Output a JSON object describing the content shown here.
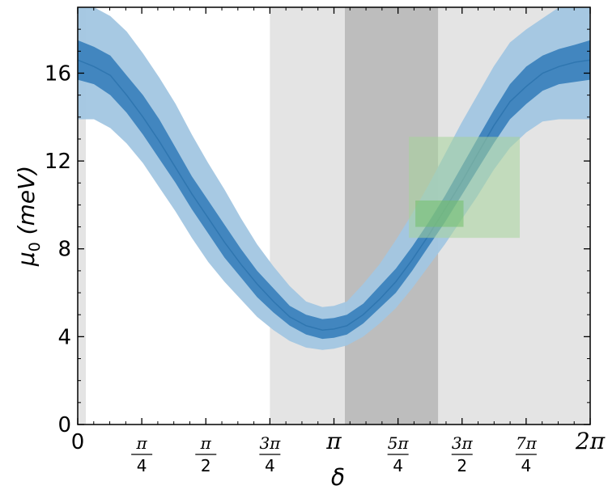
{
  "chart_data": {
    "type": "area",
    "xlabel": "δ",
    "ylabel_main": "μ",
    "ylabel_sub": "0",
    "ylabel_unit": "(meV)",
    "xlim": [
      0,
      6.2832
    ],
    "ylim": [
      0,
      19
    ],
    "y_ticks": [
      0,
      4,
      8,
      12,
      16
    ],
    "y_tick_labels": [
      "0",
      "4",
      "8",
      "12",
      "16"
    ],
    "x_ticks": [
      0,
      0.7854,
      1.5708,
      2.3562,
      3.1416,
      3.927,
      4.7124,
      5.4978,
      6.2832
    ],
    "x_tick_labels": [
      {
        "type": "plain",
        "text": "0"
      },
      {
        "type": "frac",
        "num": "π",
        "den": "4"
      },
      {
        "type": "frac",
        "num": "π",
        "den": "2"
      },
      {
        "type": "frac",
        "num": "3π",
        "den": "4"
      },
      {
        "type": "pi",
        "text": "π"
      },
      {
        "type": "frac",
        "num": "5π",
        "den": "4"
      },
      {
        "type": "frac",
        "num": "3π",
        "den": "2"
      },
      {
        "type": "frac",
        "num": "7π",
        "den": "4"
      },
      {
        "type": "pi",
        "text": "2π"
      }
    ],
    "grid": false,
    "colors": {
      "line": "#2f76b0",
      "band_inner": "#3c83bd",
      "band_outer": "#a2c6e2",
      "shade_light": "#e4e4e4",
      "shade_dark": "#bdbdbd",
      "box": "#a6d49b",
      "box_inner": "#72bf6a"
    },
    "shaded_regions": [
      {
        "x0": 0.0,
        "x1": 0.1,
        "shade": "light"
      },
      {
        "x0": 2.356,
        "x1": 3.275,
        "shade": "light"
      },
      {
        "x0": 3.275,
        "x1": 4.42,
        "shade": "dark"
      },
      {
        "x0": 4.42,
        "x1": 6.2832,
        "shade": "light"
      }
    ],
    "boxes": [
      {
        "x0": 4.06,
        "x1": 5.42,
        "y0": 8.5,
        "y1": 13.1,
        "kind": "outer"
      },
      {
        "x0": 4.14,
        "x1": 4.73,
        "y0": 9.0,
        "y1": 10.2,
        "kind": "inner"
      }
    ],
    "series": {
      "x": [
        0.0,
        0.2,
        0.4,
        0.6,
        0.8,
        1.0,
        1.2,
        1.4,
        1.6,
        1.8,
        2.0,
        2.2,
        2.4,
        2.6,
        2.8,
        3.0,
        3.1416,
        3.3,
        3.5,
        3.7,
        3.9,
        4.1,
        4.3,
        4.5,
        4.7,
        4.9,
        5.1,
        5.3,
        5.5,
        5.7,
        5.9,
        6.1,
        6.2832
      ],
      "mean": [
        16.6,
        16.3,
        15.9,
        15.0,
        14.0,
        12.9,
        11.7,
        10.5,
        9.4,
        8.3,
        7.3,
        6.4,
        5.6,
        4.9,
        4.5,
        4.3,
        4.35,
        4.5,
        5.0,
        5.7,
        6.5,
        7.5,
        8.6,
        9.8,
        11.0,
        12.3,
        13.6,
        14.7,
        15.4,
        16.0,
        16.3,
        16.5,
        16.6
      ],
      "inner_lo": [
        15.7,
        15.5,
        15.0,
        14.2,
        13.2,
        12.1,
        11.0,
        9.8,
        8.7,
        7.6,
        6.7,
        5.8,
        5.1,
        4.5,
        4.1,
        3.9,
        3.95,
        4.1,
        4.6,
        5.3,
        6.0,
        7.0,
        8.1,
        9.2,
        10.4,
        11.6,
        12.8,
        13.9,
        14.6,
        15.2,
        15.5,
        15.6,
        15.7
      ],
      "inner_hi": [
        17.5,
        17.2,
        16.8,
        15.9,
        15.0,
        13.9,
        12.6,
        11.3,
        10.2,
        9.1,
        8.0,
        7.0,
        6.2,
        5.4,
        5.0,
        4.8,
        4.85,
        5.0,
        5.5,
        6.3,
        7.1,
        8.1,
        9.2,
        10.4,
        11.7,
        13.0,
        14.3,
        15.5,
        16.3,
        16.8,
        17.1,
        17.3,
        17.5
      ],
      "outer_lo": [
        13.9,
        13.9,
        13.5,
        12.8,
        11.9,
        10.8,
        9.7,
        8.5,
        7.4,
        6.5,
        5.7,
        4.9,
        4.3,
        3.8,
        3.5,
        3.4,
        3.45,
        3.6,
        4.0,
        4.6,
        5.3,
        6.2,
        7.2,
        8.2,
        9.3,
        10.4,
        11.6,
        12.6,
        13.3,
        13.8,
        13.9,
        13.9,
        13.9
      ],
      "outer_hi": [
        19.0,
        19.0,
        18.6,
        17.9,
        16.9,
        15.8,
        14.6,
        13.2,
        11.9,
        10.7,
        9.4,
        8.2,
        7.2,
        6.3,
        5.6,
        5.35,
        5.4,
        5.6,
        6.4,
        7.3,
        8.4,
        9.6,
        10.9,
        12.3,
        13.7,
        15.0,
        16.3,
        17.4,
        18.0,
        18.5,
        19.0,
        19.0,
        19.0
      ]
    }
  }
}
